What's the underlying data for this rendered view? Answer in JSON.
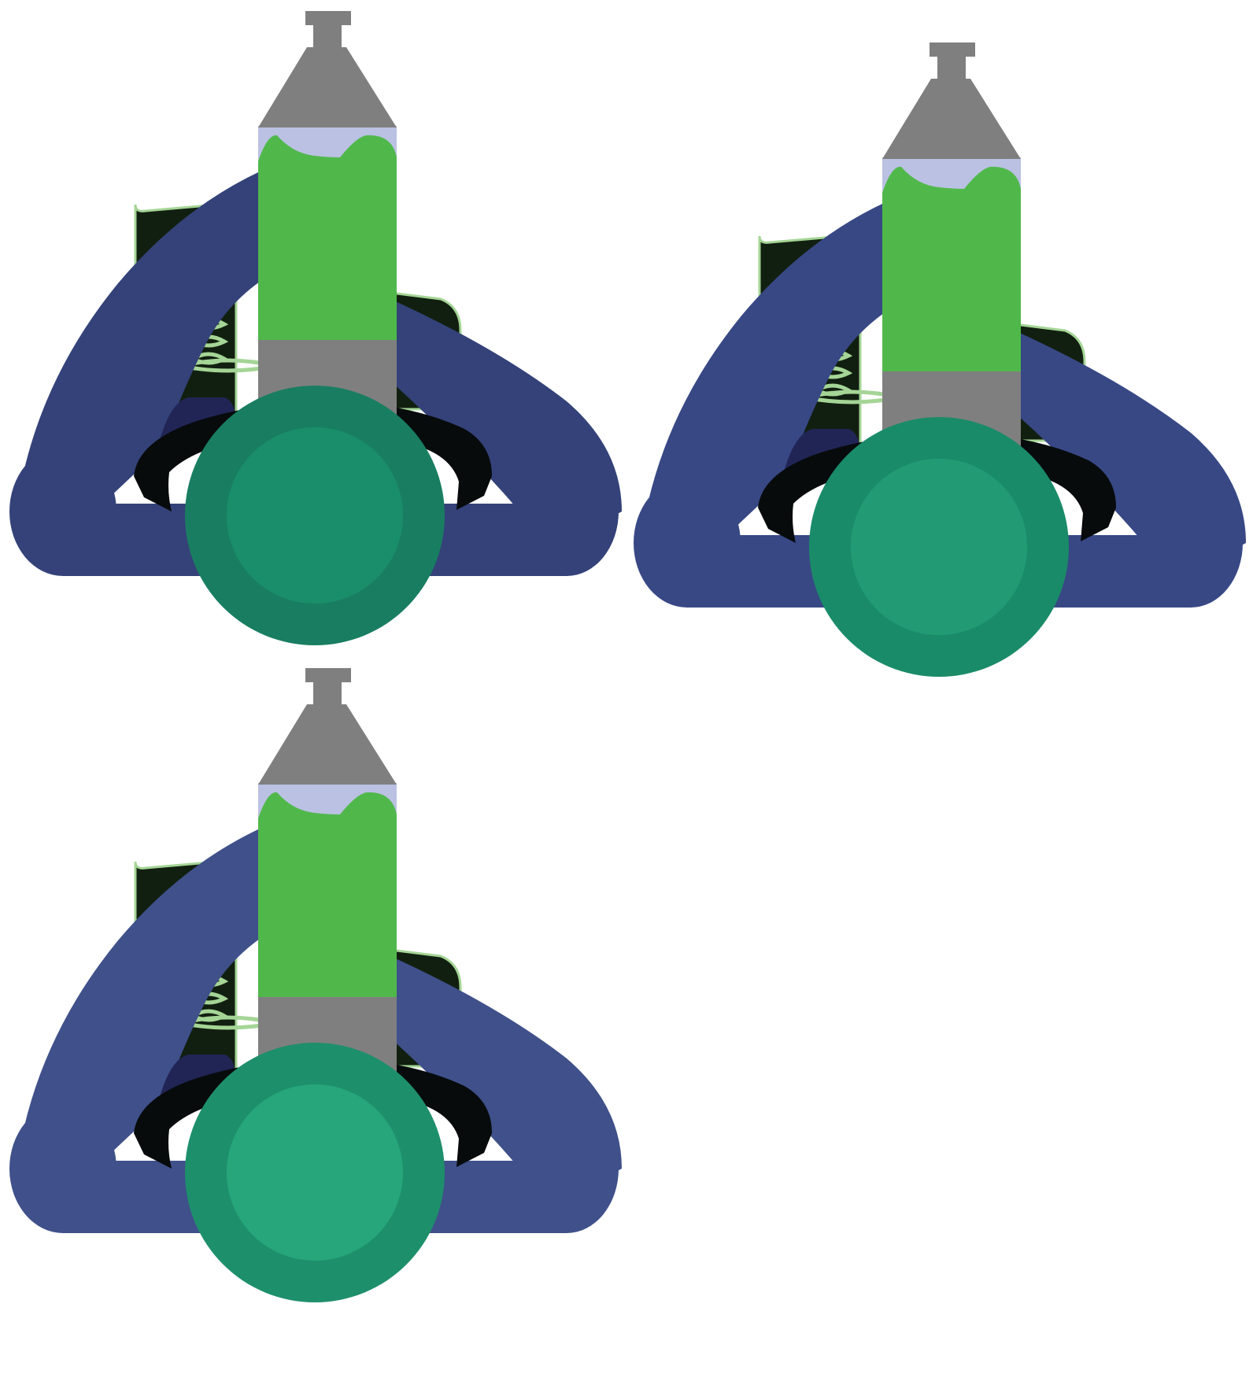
{
  "illustrations": [
    {
      "id": "variant-1",
      "colors": {
        "arch": "#344279",
        "arch_inner": "#212556",
        "base_ring": "#197e61",
        "base_core": "#1a8e6b",
        "tank_fill": "#50b84b",
        "tank_empty": "#bac1e2",
        "cap": "#7f7f7f",
        "grip": "#070b0c",
        "coil_box": "#111f10",
        "coil": "#a5d596"
      }
    },
    {
      "id": "variant-2",
      "colors": {
        "arch": "#384885",
        "arch_inner": "#212556",
        "base_ring": "#1a8b68",
        "base_core": "#229b75",
        "tank_fill": "#50b84b",
        "tank_empty": "#bac1e2",
        "cap": "#7f7f7f",
        "grip": "#070b0c",
        "coil_box": "#111f10",
        "coil": "#a5d596"
      }
    },
    {
      "id": "variant-3",
      "colors": {
        "arch": "#3f508a",
        "arch_inner": "#212556",
        "base_ring": "#1e8f6b",
        "base_core": "#26a67a",
        "tank_fill": "#50b84b",
        "tank_empty": "#bac1e2",
        "cap": "#7f7f7f",
        "grip": "#070b0c",
        "coil_box": "#111f10",
        "coil": "#a5d596"
      }
    }
  ],
  "icon_names": [
    "dropper-cap-icon",
    "liquid-tank-icon",
    "coil-icon",
    "base-disc-icon",
    "arch-handle-icon"
  ]
}
